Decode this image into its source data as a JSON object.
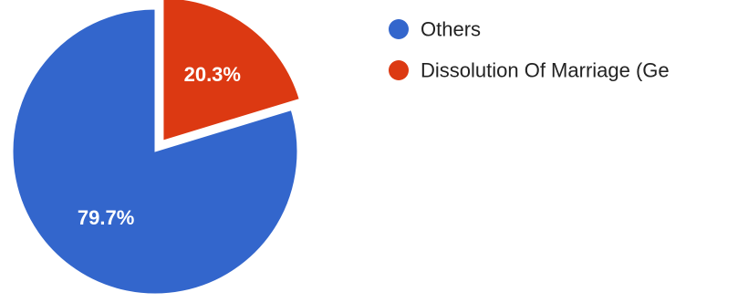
{
  "chart_data": {
    "type": "pie",
    "categories": [
      "Others",
      "Dissolution Of Marriage (Ge"
    ],
    "values": [
      79.7,
      20.3
    ],
    "labels": [
      "79.7%",
      "20.3%"
    ],
    "colors": [
      "#3366cc",
      "#dc3912"
    ],
    "exploded": [
      false,
      true
    ],
    "legend": {
      "position": "right",
      "entries": [
        "Others",
        "Dissolution Of Marriage (Ge"
      ]
    }
  }
}
